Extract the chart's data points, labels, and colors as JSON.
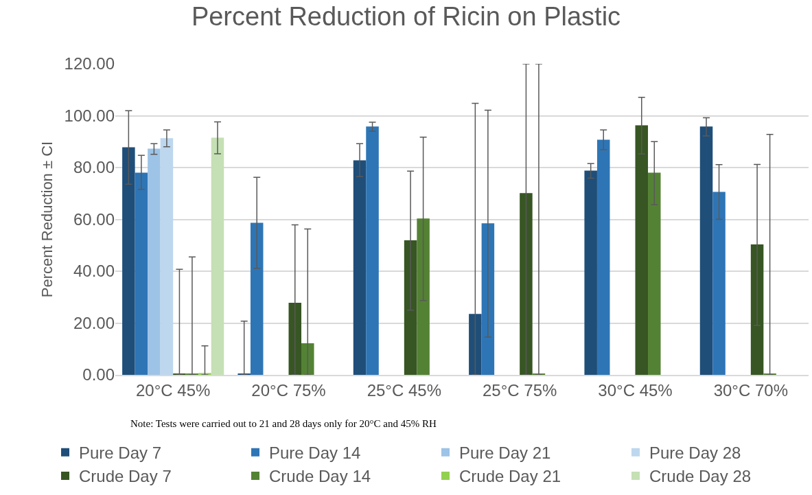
{
  "chart_data": {
    "type": "bar",
    "title": "Percent Reduction of Ricin on Plastic",
    "ylabel": "Percent Reduction ± CI",
    "categories": [
      "20°C 45%",
      "20°C 75%",
      "25°C 45%",
      "25°C 75%",
      "30°C 45%",
      "30°C 70%"
    ],
    "series": [
      {
        "name": "Pure Day 7",
        "color": "#1f4e79",
        "values": [
          87.8,
          0.3,
          82.8,
          23.5,
          78.8,
          95.8
        ],
        "errors": [
          [
            73.6,
            101.9
          ],
          [
            0,
            20.7
          ],
          [
            76.5,
            89.2
          ],
          [
            0,
            104.8
          ],
          [
            75.9,
            81.5
          ],
          [
            92.2,
            99.2
          ]
        ]
      },
      {
        "name": "Pure Day 14",
        "color": "#2e75b6",
        "values": [
          78.0,
          58.7,
          95.8,
          58.5,
          90.7,
          70.6
        ],
        "errors": [
          [
            71.6,
            84.7
          ],
          [
            41.1,
            76.2
          ],
          [
            94.0,
            97.5
          ],
          [
            14.6,
            102.1
          ],
          [
            86.9,
            94.5
          ],
          [
            60.0,
            81.1
          ]
        ]
      },
      {
        "name": "Pure Day 21",
        "color": "#9dc3e6",
        "values": [
          87.3,
          null,
          null,
          null,
          null,
          null
        ],
        "errors": [
          [
            85.1,
            89.2
          ],
          null,
          null,
          null,
          null,
          null
        ]
      },
      {
        "name": "Pure Day 28",
        "color": "#bdd7ee",
        "values": [
          91.3,
          null,
          null,
          null,
          null,
          null
        ],
        "errors": [
          [
            88.0,
            94.5
          ],
          null,
          null,
          null,
          null,
          null
        ]
      },
      {
        "name": "Crude Day 7",
        "color": "#375623",
        "values": [
          0.3,
          27.8,
          51.9,
          70.1,
          96.3,
          50.3
        ],
        "errors": [
          [
            0,
            40.7
          ],
          [
            0,
            57.9
          ],
          [
            25.0,
            78.6
          ],
          [
            0,
            120
          ],
          [
            85.2,
            107.1
          ],
          [
            19.1,
            81.2
          ]
        ]
      },
      {
        "name": "Crude Day 14",
        "color": "#548235",
        "values": [
          0.3,
          12.2,
          60.3,
          0.3,
          78.0,
          0.3
        ],
        "errors": [
          [
            0,
            45.5
          ],
          [
            0,
            56.3
          ],
          [
            28.7,
            91.7
          ],
          [
            0,
            120
          ],
          [
            65.6,
            90.0
          ],
          [
            0,
            92.8
          ]
        ]
      },
      {
        "name": "Crude Day 21",
        "color": "#92d050",
        "values": [
          0.7,
          null,
          null,
          null,
          null,
          null
        ],
        "errors": [
          [
            0,
            11.2
          ],
          null,
          null,
          null,
          null,
          null
        ]
      },
      {
        "name": "Crude Day 28",
        "color": "#c5e0b4",
        "values": [
          91.5,
          null,
          null,
          null,
          null,
          null
        ],
        "errors": [
          [
            85.3,
            97.6
          ],
          null,
          null,
          null,
          null,
          null
        ]
      }
    ],
    "ylim": [
      0,
      120
    ],
    "yticks": [
      {
        "value": 0,
        "label": "0.00"
      },
      {
        "value": 20,
        "label": "20.00"
      },
      {
        "value": 40,
        "label": "40.00"
      },
      {
        "value": 60,
        "label": "60.00"
      },
      {
        "value": 80,
        "label": "80.00"
      },
      {
        "value": 100,
        "label": "100.00"
      },
      {
        "value": 120,
        "label": "120.00"
      }
    ],
    "grid": "y",
    "legend": "bottom",
    "annotations": [
      "Note: Tests were carried out to 21 and 28 days only for 20°C and 45% RH"
    ]
  }
}
